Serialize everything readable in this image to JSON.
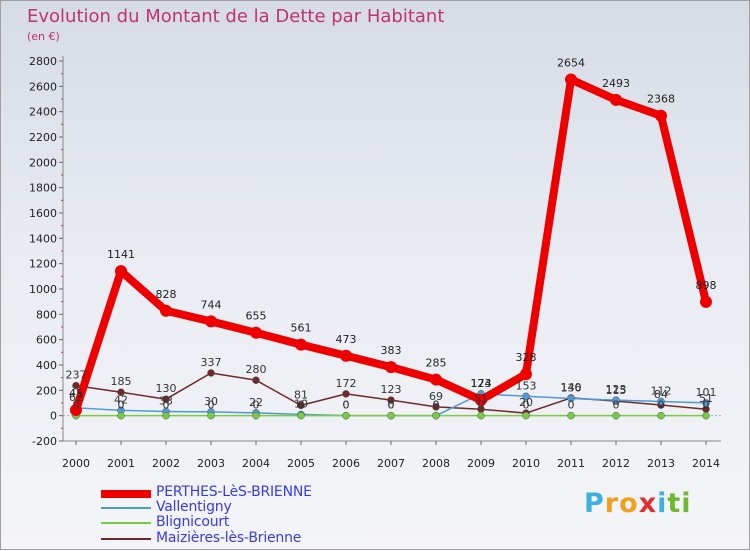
{
  "title": "Evolution du Montant de la Dette par Habitant",
  "subtitle": "(en €)",
  "chart_data": {
    "type": "line",
    "title": "Evolution du Montant de la Dette par Habitant",
    "ylabel": "(en €)",
    "xlabel": "",
    "categories": [
      "2000",
      "2001",
      "2002",
      "2003",
      "2004",
      "2005",
      "2006",
      "2007",
      "2008",
      "2009",
      "2010",
      "2011",
      "2012",
      "2013",
      "2014"
    ],
    "ylim": [
      -200,
      2800
    ],
    "yticks": [
      -200,
      0,
      200,
      400,
      600,
      800,
      1000,
      1200,
      1400,
      1600,
      1800,
      2000,
      2200,
      2400,
      2600,
      2800
    ],
    "grid": false,
    "legend_position": "bottom-left",
    "series": [
      {
        "name": "PERTHES-LèS-BRIENNE",
        "color": "#ee0000",
        "values": [
          45,
          1141,
          828,
          744,
          655,
          561,
          473,
          383,
          285,
          124,
          328,
          2654,
          2493,
          2368,
          898
        ],
        "labels": [
          "45",
          "1141",
          "828",
          "744",
          "655",
          "561",
          "473",
          "383",
          "285",
          "124",
          "328",
          "2654",
          "2493",
          "2368",
          "898"
        ]
      },
      {
        "name": "Vallentigny",
        "color": "#4d9ad6",
        "values": [
          62,
          42,
          33,
          30,
          22,
          10,
          0,
          0,
          0,
          173,
          153,
          136,
          123,
          112,
          101
        ],
        "labels": [
          "62",
          "42",
          "33",
          "30",
          "22",
          "10",
          "0",
          "0",
          "0",
          "173",
          "153",
          "136",
          "123",
          "112",
          "101"
        ]
      },
      {
        "name": "Blignicourt",
        "color": "#77cc44",
        "values": [
          0,
          0,
          0,
          0,
          0,
          0,
          0,
          0,
          0,
          0,
          0,
          0,
          0,
          0,
          0
        ],
        "labels": [
          "0",
          "0",
          "0",
          "0",
          "0",
          "0",
          "0",
          "0",
          "0",
          "0",
          "0",
          "0",
          "0",
          "0",
          "0"
        ]
      },
      {
        "name": "Maizières-lès-Brienne",
        "color": "#6e2a2a",
        "values": [
          237,
          185,
          130,
          337,
          280,
          81,
          172,
          123,
          69,
          51,
          20,
          140,
          115,
          84,
          51
        ],
        "labels": [
          "237",
          "185",
          "130",
          "337",
          "280",
          "81",
          "172",
          "123",
          "69",
          "51",
          "20",
          "140",
          "115",
          "84",
          "51"
        ]
      }
    ]
  },
  "logo": {
    "letters": [
      "P",
      "r",
      "o",
      "x",
      "i",
      "t",
      "i"
    ],
    "colors": [
      "#3cb0e0",
      "#f0a020",
      "#f0a020",
      "#e03030",
      "#3cb0e0",
      "#70b830",
      "#70b830"
    ]
  }
}
